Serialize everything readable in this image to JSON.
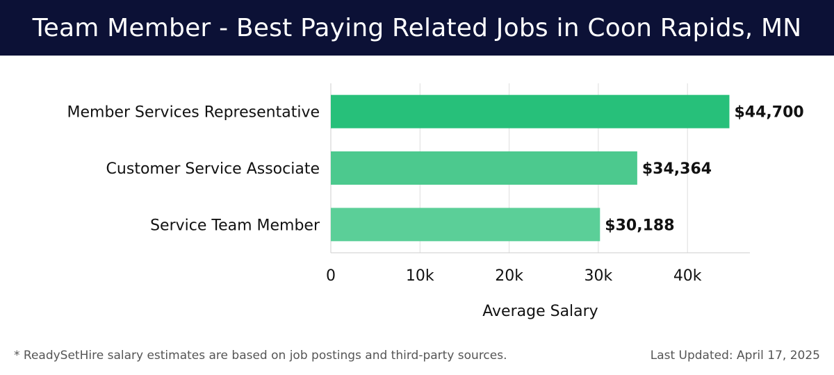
{
  "header": {
    "title": "Team Member - Best Paying Related Jobs in Coon Rapids, MN"
  },
  "chart_data": {
    "type": "bar",
    "orientation": "horizontal",
    "title": "Team Member - Best Paying Related Jobs in Coon Rapids, MN",
    "categories": [
      "Member Services Representative",
      "Customer Service Associate",
      "Service Team Member"
    ],
    "values": [
      44700,
      34364,
      30188
    ],
    "value_labels": [
      "$44,700",
      "$34,364",
      "$30,188"
    ],
    "bar_colors": [
      "#27c07a",
      "#4cc98e",
      "#5bcf98"
    ],
    "xlabel": "Average Salary",
    "ylabel": "",
    "xlim": [
      0,
      47000
    ],
    "xticks": [
      0,
      10000,
      20000,
      30000,
      40000
    ],
    "xtick_labels": [
      "0",
      "10k",
      "20k",
      "30k",
      "40k"
    ],
    "grid": true
  },
  "footer": {
    "note": "* ReadySetHire salary estimates are based on job postings and third-party sources.",
    "updated": "Last Updated: April 17, 2025"
  },
  "colors": {
    "header_bg": "#0c1136",
    "grid": "#dddddd",
    "text": "#111111",
    "footnote": "#555555"
  }
}
